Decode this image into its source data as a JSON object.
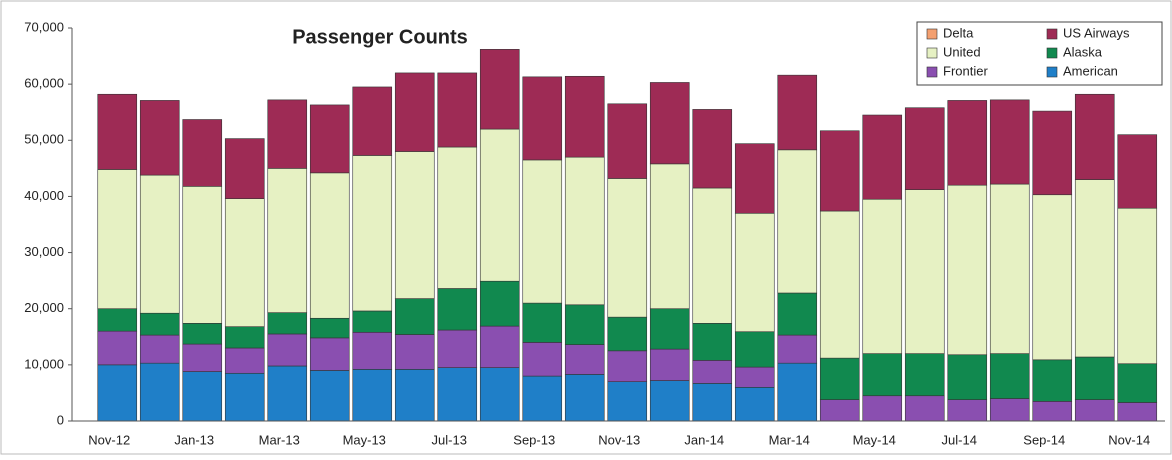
{
  "chart_data": {
    "type": "stacked-bar",
    "title": "Passenger Counts",
    "categories": [
      "Nov-12",
      null,
      "Jan-13",
      null,
      "Mar-13",
      null,
      "May-13",
      null,
      "Jul-13",
      null,
      "Sep-13",
      null,
      "Nov-13",
      null,
      "Jan-14",
      null,
      "Mar-14",
      null,
      "May-14",
      null,
      "Jul-14",
      null,
      "Sep-14",
      null,
      "Nov-14"
    ],
    "series": [
      {
        "name": "American",
        "color": "#1f7fc8",
        "values": [
          10000,
          10300,
          8800,
          8500,
          9800,
          9000,
          9200,
          9200,
          9500,
          9500,
          8000,
          8300,
          7000,
          7200,
          6700,
          6000,
          10300,
          0,
          0,
          0,
          0,
          0,
          0,
          0,
          0
        ]
      },
      {
        "name": "Frontier",
        "color": "#8a4fb0",
        "values": [
          6000,
          5000,
          4900,
          4500,
          5700,
          5800,
          6600,
          6200,
          6700,
          7400,
          6000,
          5300,
          5500,
          5600,
          4100,
          3600,
          5000,
          3800,
          4500,
          4500,
          3800,
          4000,
          3500,
          3800,
          3300
        ]
      },
      {
        "name": "Alaska",
        "color": "#11894f",
        "values": [
          4000,
          3900,
          3700,
          3800,
          3800,
          3500,
          3800,
          6400,
          7400,
          8000,
          7000,
          7100,
          6000,
          7200,
          6600,
          6300,
          7500,
          7400,
          7500,
          7500,
          8000,
          8000,
          7400,
          7600,
          6900
        ]
      },
      {
        "name": "United",
        "color": "#e6f1c3",
        "values": [
          24800,
          24600,
          24400,
          22800,
          25700,
          25900,
          27700,
          26200,
          25200,
          27100,
          25500,
          26300,
          24700,
          25800,
          24100,
          21100,
          25500,
          26200,
          27500,
          29200,
          30200,
          30200,
          29400,
          31600,
          27700
        ]
      },
      {
        "name": "US Airways",
        "color": "#9e2b55",
        "values": [
          13400,
          13300,
          11900,
          10700,
          12200,
          12100,
          12200,
          14000,
          13200,
          14200,
          14800,
          14400,
          13300,
          14500,
          14000,
          12400,
          13300,
          14300,
          15000,
          14600,
          15100,
          15000,
          14900,
          15200,
          13100
        ]
      },
      {
        "name": "Delta",
        "color": "#f4a070",
        "values": [
          0,
          0,
          0,
          0,
          0,
          0,
          0,
          0,
          0,
          0,
          0,
          0,
          0,
          0,
          0,
          0,
          0,
          0,
          0,
          0,
          0,
          0,
          0,
          0,
          0
        ]
      }
    ],
    "ylim": [
      0,
      70000
    ],
    "yticks": [
      0,
      {
        "value": 10000,
        "label": "10,000"
      },
      {
        "value": 20000,
        "label": "20,000"
      },
      {
        "value": 30000,
        "label": "30,000"
      },
      {
        "value": 40000,
        "label": "40,000"
      },
      {
        "value": 50000,
        "label": "50,000"
      },
      {
        "value": 60000,
        "label": "60,000"
      },
      {
        "value": 70000,
        "label": "70,000"
      }
    ],
    "grid": false,
    "legend": "top-right"
  }
}
